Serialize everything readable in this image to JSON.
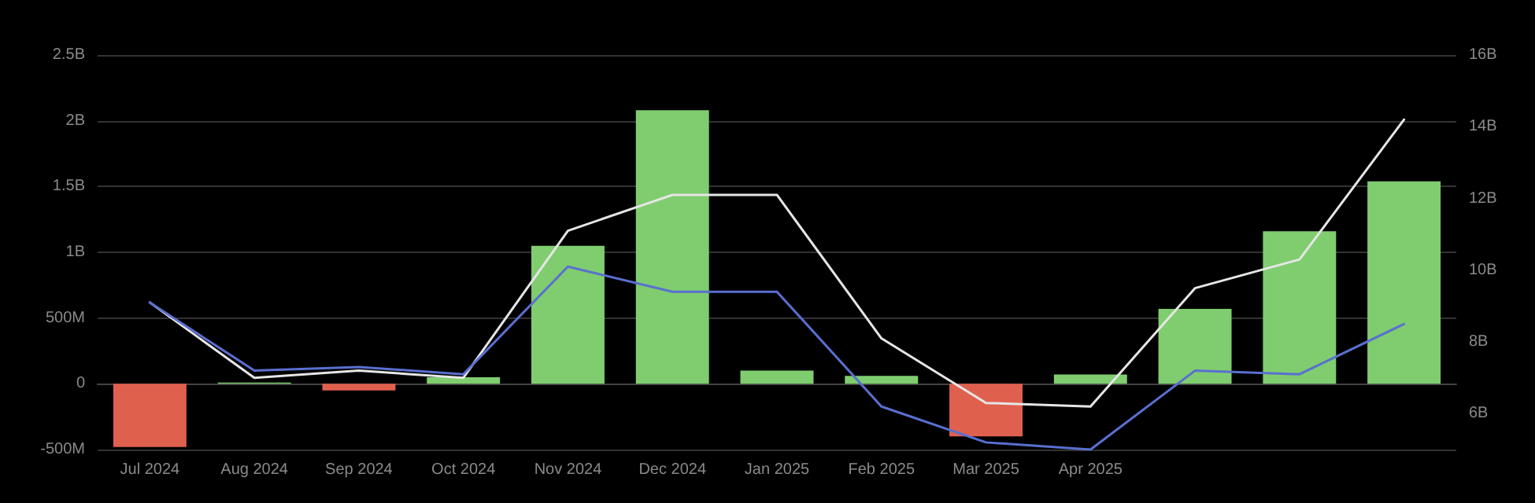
{
  "chart_data": {
    "type": "bar",
    "categories": [
      "Jul 2024",
      "Aug 2024",
      "Sep 2024",
      "Oct 2024",
      "Nov 2024",
      "Dec 2024",
      "Jan 2025",
      "Feb 2025",
      "Mar 2025",
      "Apr 2025",
      null,
      null,
      null
    ],
    "series": [
      {
        "colors": [
          "#e0604e",
          "#7fcd6f",
          "#e0604e",
          "#7fcd6f",
          "#7fcd6f",
          "#7fcd6f",
          "#7fcd6f",
          "#7fcd6f",
          "#e0604e",
          "#7fcd6f",
          "#7fcd6f",
          "#7fcd6f",
          "#7fcd6f"
        ],
        "values": [
          -480000000,
          10000000,
          -50000000,
          50000000,
          1050000000,
          2080000000,
          100000000,
          60000000,
          -400000000,
          70000000,
          570000000,
          1160000000,
          1540000000
        ]
      },
      {
        "type": "line",
        "axis": "y2",
        "color": "#e6e6e6",
        "values": [
          9.1,
          7.0,
          7.2,
          7.0,
          11.1,
          12.1,
          12.1,
          8.1,
          6.3,
          6.2,
          9.5,
          10.3,
          14.2
        ]
      },
      {
        "type": "line",
        "axis": "y2",
        "color": "#5a6fd0",
        "values": [
          9.1,
          7.2,
          7.3,
          7.1,
          10.1,
          9.4,
          9.4,
          6.2,
          5.2,
          5.0,
          7.2,
          7.1,
          8.5
        ]
      }
    ],
    "ylim": [
      -500000000,
      2500000000
    ],
    "yticks": [
      {
        "value": -500000000,
        "label": "-500M"
      },
      {
        "value": 0,
        "label": "0"
      },
      {
        "value": 500000000,
        "label": "500M"
      },
      {
        "value": 1000000000,
        "label": "1B"
      },
      {
        "value": 1500000000,
        "label": "1.5B"
      },
      {
        "value": 2000000000,
        "label": "2B"
      },
      {
        "value": 2500000000,
        "label": "2.5B"
      }
    ],
    "y2lim": [
      5,
      16
    ],
    "y2ticks": [
      {
        "value": 6,
        "label": "6B"
      },
      {
        "value": 8,
        "label": "8B"
      },
      {
        "value": 10,
        "label": "10B"
      },
      {
        "value": 12,
        "label": "12B"
      },
      {
        "value": 14,
        "label": "14B"
      },
      {
        "value": 16,
        "label": "16B"
      }
    ],
    "grid": "y",
    "marker": "none",
    "line_style": "solid"
  }
}
